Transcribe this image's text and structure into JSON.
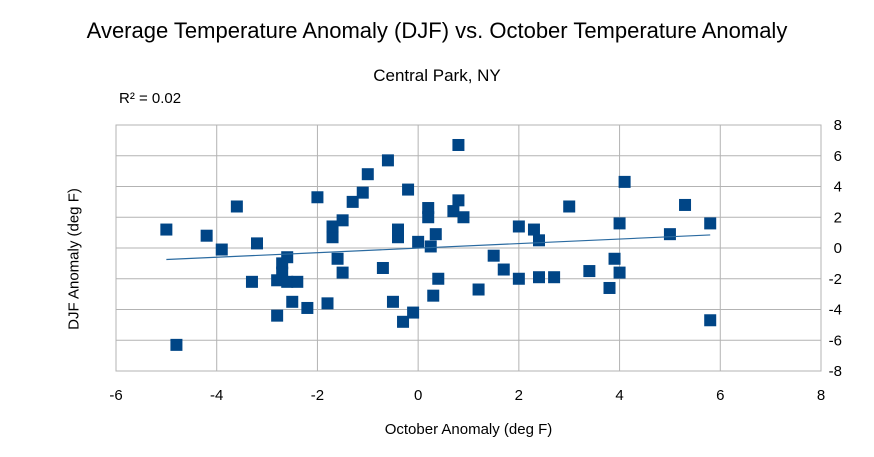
{
  "chart_data": {
    "type": "scatter",
    "title": "Average Temperature Anomaly (DJF) vs. October Temperature Anomaly",
    "subtitle": "Central Park, NY",
    "annotation": "R² = 0.02",
    "xlabel": "October Anomaly (deg F)",
    "ylabel": "DJF Anomaly (deg F)",
    "xlim": [
      -6,
      8
    ],
    "ylim": [
      -8,
      8
    ],
    "x_ticks": [
      "-6",
      "-4",
      "-2",
      "0",
      "2",
      "4",
      "6",
      "8"
    ],
    "y_ticks": [
      "8",
      "6",
      "4",
      "2",
      "0",
      "-2",
      "-4",
      "-6",
      "-8"
    ],
    "grid": true,
    "marker_color": "#004586",
    "trendline_color": "#2a6aa0",
    "trendline": {
      "x": [
        -5.0,
        5.8
      ],
      "y": [
        -0.75,
        0.85
      ]
    },
    "points": [
      {
        "x": -5.0,
        "y": 1.2
      },
      {
        "x": -4.8,
        "y": -6.3
      },
      {
        "x": -4.2,
        "y": 0.8
      },
      {
        "x": -3.9,
        "y": -0.1
      },
      {
        "x": -3.6,
        "y": 2.7
      },
      {
        "x": -3.3,
        "y": -2.2
      },
      {
        "x": -3.2,
        "y": 0.3
      },
      {
        "x": -2.8,
        "y": -4.4
      },
      {
        "x": -2.8,
        "y": -2.1
      },
      {
        "x": -2.7,
        "y": -1.0
      },
      {
        "x": -2.7,
        "y": -1.6
      },
      {
        "x": -2.6,
        "y": -2.2
      },
      {
        "x": -2.6,
        "y": -0.6
      },
      {
        "x": -2.5,
        "y": -3.5
      },
      {
        "x": -2.4,
        "y": -2.2
      },
      {
        "x": -2.2,
        "y": -3.9
      },
      {
        "x": -2.0,
        "y": 3.3
      },
      {
        "x": -1.8,
        "y": -3.6
      },
      {
        "x": -1.7,
        "y": 0.7
      },
      {
        "x": -1.7,
        "y": 1.4
      },
      {
        "x": -1.6,
        "y": -0.7
      },
      {
        "x": -1.5,
        "y": -1.6
      },
      {
        "x": -1.5,
        "y": 1.8
      },
      {
        "x": -1.3,
        "y": 3.0
      },
      {
        "x": -1.1,
        "y": 3.6
      },
      {
        "x": -1.0,
        "y": 4.8
      },
      {
        "x": -0.7,
        "y": -1.3
      },
      {
        "x": -0.6,
        "y": 5.7
      },
      {
        "x": -0.5,
        "y": -3.5
      },
      {
        "x": -0.4,
        "y": 0.7
      },
      {
        "x": -0.4,
        "y": 1.2
      },
      {
        "x": -0.3,
        "y": -4.8
      },
      {
        "x": -0.2,
        "y": 3.8
      },
      {
        "x": -0.1,
        "y": -4.2
      },
      {
        "x": 0.0,
        "y": 0.4
      },
      {
        "x": 0.2,
        "y": 2.6
      },
      {
        "x": 0.2,
        "y": 2.0
      },
      {
        "x": 0.25,
        "y": 0.1
      },
      {
        "x": 0.3,
        "y": -3.1
      },
      {
        "x": 0.35,
        "y": 0.9
      },
      {
        "x": 0.4,
        "y": -2.0
      },
      {
        "x": 0.7,
        "y": 2.4
      },
      {
        "x": 0.8,
        "y": 3.1
      },
      {
        "x": 0.8,
        "y": 6.7
      },
      {
        "x": 0.9,
        "y": 2.0
      },
      {
        "x": 1.2,
        "y": -2.7
      },
      {
        "x": 1.5,
        "y": -0.5
      },
      {
        "x": 1.7,
        "y": -1.4
      },
      {
        "x": 2.0,
        "y": 1.4
      },
      {
        "x": 2.0,
        "y": -2.0
      },
      {
        "x": 2.3,
        "y": 1.2
      },
      {
        "x": 2.4,
        "y": 0.5
      },
      {
        "x": 2.4,
        "y": -1.9
      },
      {
        "x": 2.7,
        "y": -1.9
      },
      {
        "x": 3.0,
        "y": 2.7
      },
      {
        "x": 3.4,
        "y": -1.5
      },
      {
        "x": 3.8,
        "y": -2.6
      },
      {
        "x": 3.9,
        "y": -0.7
      },
      {
        "x": 4.0,
        "y": -1.6
      },
      {
        "x": 4.0,
        "y": 1.6
      },
      {
        "x": 4.1,
        "y": 4.3
      },
      {
        "x": 5.0,
        "y": 0.9
      },
      {
        "x": 5.3,
        "y": 2.8
      },
      {
        "x": 5.8,
        "y": 1.6
      },
      {
        "x": 5.8,
        "y": -4.7
      }
    ]
  }
}
